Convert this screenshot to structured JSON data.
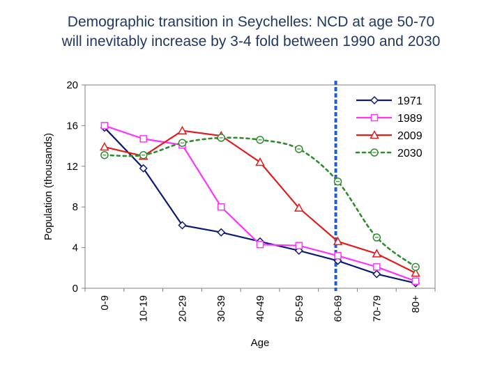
{
  "title": {
    "line1": "Demographic transition in Seychelles: NCD at age 50-70",
    "line2": "will inevitably increase by 3-4 fold between 1990 and 2030"
  },
  "colors": {
    "title": "#1f3864",
    "s1971": "#0d1a73",
    "s1989": "#ff33ff",
    "s2009": "#e31b1b",
    "s2030": "#2e8b2e",
    "marker": "#1f5fd6"
  },
  "chart_data": {
    "type": "line",
    "categories": [
      "0-9",
      "10-19",
      "20-29",
      "30-39",
      "40-49",
      "50-59",
      "60-69",
      "70-79",
      "80+"
    ],
    "xlabel": "Age",
    "ylabel": "Population (thousands)",
    "ylim": [
      0,
      20
    ],
    "yticks": [
      "0",
      "4",
      "8",
      "12",
      "16",
      "20"
    ],
    "grid": false,
    "legend_position": "top-right",
    "vertical_marker_category": "60-69",
    "series": [
      {
        "name": "1971",
        "values": [
          15.8,
          11.8,
          6.2,
          5.5,
          4.6,
          3.7,
          2.7,
          1.4,
          0.5
        ],
        "marker": "diamond",
        "style": "solid"
      },
      {
        "name": "1989",
        "values": [
          16.0,
          14.7,
          14.1,
          8.0,
          4.3,
          4.2,
          3.2,
          2.1,
          0.7
        ],
        "marker": "square",
        "style": "solid"
      },
      {
        "name": "2009",
        "values": [
          13.9,
          13.0,
          15.5,
          15.0,
          12.4,
          7.9,
          4.6,
          3.4,
          1.5
        ],
        "marker": "triangle",
        "style": "solid"
      },
      {
        "name": "2030",
        "values": [
          13.1,
          13.1,
          14.3,
          14.8,
          14.6,
          13.7,
          10.5,
          5.0,
          2.1
        ],
        "marker": "circle",
        "style": "dotted"
      }
    ]
  }
}
